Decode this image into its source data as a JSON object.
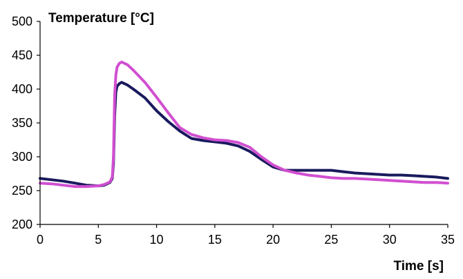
{
  "chart_data": {
    "type": "line",
    "title": "",
    "ylabel": "Temperature [°C]",
    "xlabel": "Time [s]",
    "xlim": [
      0,
      35
    ],
    "ylim": [
      200,
      500
    ],
    "xticks": [
      0,
      5,
      10,
      15,
      20,
      25,
      30,
      35
    ],
    "yticks": [
      200,
      250,
      300,
      350,
      400,
      450,
      500
    ],
    "grid": false,
    "legend": "none",
    "series": [
      {
        "color": "#1a1a5e",
        "x": [
          0,
          1,
          2,
          3,
          4,
          5,
          5.5,
          6,
          6.2,
          6.3,
          6.4,
          6.5,
          6.6,
          6.8,
          7,
          7.5,
          8,
          9,
          10,
          11,
          12,
          13,
          14,
          15,
          16,
          17,
          18,
          19,
          20,
          21,
          22,
          23,
          24,
          25,
          26,
          27,
          28,
          29,
          30,
          31,
          32,
          33,
          34,
          35
        ],
        "y": [
          268,
          266,
          264,
          261,
          258,
          257,
          258,
          262,
          268,
          290,
          360,
          395,
          404,
          408,
          410,
          406,
          400,
          387,
          368,
          352,
          338,
          327,
          324,
          322,
          320,
          316,
          308,
          296,
          285,
          280,
          280,
          280,
          280,
          280,
          278,
          276,
          275,
          274,
          273,
          273,
          272,
          271,
          270,
          268
        ]
      },
      {
        "color": "#d14fd1",
        "x": [
          0,
          1,
          2,
          3,
          4,
          5,
          5.5,
          6,
          6.2,
          6.3,
          6.4,
          6.5,
          6.6,
          6.8,
          7,
          7.5,
          8,
          9,
          10,
          11,
          12,
          13,
          14,
          15,
          16,
          17,
          18,
          19,
          20,
          21,
          22,
          23,
          24,
          25,
          26,
          27,
          28,
          29,
          30,
          31,
          32,
          33,
          34,
          35
        ],
        "y": [
          261,
          260,
          258,
          256,
          256,
          257,
          259,
          263,
          270,
          300,
          390,
          420,
          432,
          438,
          440,
          436,
          428,
          410,
          388,
          365,
          343,
          333,
          328,
          325,
          324,
          321,
          314,
          300,
          288,
          280,
          276,
          273,
          271,
          269,
          268,
          268,
          267,
          266,
          265,
          264,
          263,
          262,
          262,
          261
        ]
      }
    ]
  }
}
